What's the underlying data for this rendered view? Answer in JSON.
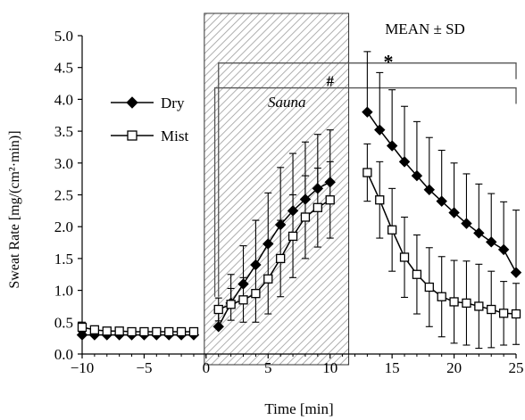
{
  "chart_data": {
    "type": "line",
    "xlabel": "Time [min]",
    "ylabel": "Sweat Rate [mg/(cm²·min)]",
    "xlim": [
      -10,
      25
    ],
    "ylim": [
      0,
      5
    ],
    "x_ticks": [
      -10,
      -5,
      0,
      5,
      10,
      15,
      20,
      25
    ],
    "y_ticks": [
      0.0,
      0.5,
      1.0,
      1.5,
      2.0,
      2.5,
      3.0,
      3.5,
      4.0,
      4.5,
      5.0
    ],
    "annotations": {
      "mean_sd": "MEAN ± SD",
      "sauna": "Sauna",
      "star": "*",
      "hash": "#"
    },
    "sauna_period": [
      0,
      11.5
    ],
    "series": [
      {
        "name": "Dry",
        "marker": "filled-diamond",
        "segments": [
          {
            "x": [
              -10,
              -9,
              -8,
              -7,
              -6,
              -5,
              -4,
              -3,
              -2,
              -1
            ],
            "y": [
              0.3,
              0.3,
              0.3,
              0.3,
              0.3,
              0.3,
              0.3,
              0.3,
              0.3,
              0.3
            ],
            "sd": [
              0.05,
              0.05,
              0.05,
              0.05,
              0.05,
              0.05,
              0.05,
              0.05,
              0.05,
              0.05
            ]
          },
          {
            "x": [
              1,
              2,
              3,
              4,
              5,
              6,
              7,
              8,
              9,
              10
            ],
            "y": [
              0.43,
              0.8,
              1.1,
              1.4,
              1.73,
              2.03,
              2.25,
              2.43,
              2.6,
              2.7
            ],
            "sd": [
              0.3,
              0.45,
              0.6,
              0.7,
              0.8,
              0.9,
              0.9,
              0.9,
              0.85,
              0.82
            ]
          },
          {
            "x": [
              13,
              14,
              15,
              16,
              17,
              18,
              19,
              20,
              21,
              22,
              23,
              24,
              25
            ],
            "y": [
              3.8,
              3.52,
              3.27,
              3.02,
              2.8,
              2.58,
              2.4,
              2.22,
              2.05,
              1.9,
              1.76,
              1.64,
              1.28
            ],
            "sd": [
              0.95,
              0.9,
              0.88,
              0.87,
              0.85,
              0.82,
              0.8,
              0.78,
              0.78,
              0.77,
              0.76,
              0.75,
              0.98
            ]
          }
        ]
      },
      {
        "name": "Mist",
        "marker": "open-square",
        "segments": [
          {
            "x": [
              -10,
              -9,
              -8,
              -7,
              -6,
              -5,
              -4,
              -3,
              -2,
              -1
            ],
            "y": [
              0.42,
              0.38,
              0.36,
              0.36,
              0.35,
              0.35,
              0.35,
              0.35,
              0.35,
              0.35
            ],
            "sd": [
              0.08,
              0.06,
              0.06,
              0.06,
              0.06,
              0.06,
              0.06,
              0.06,
              0.06,
              0.06
            ]
          },
          {
            "x": [
              1,
              2,
              3,
              4,
              5,
              6,
              7,
              8,
              9,
              10
            ],
            "y": [
              0.7,
              0.78,
              0.85,
              0.95,
              1.18,
              1.5,
              1.85,
              2.15,
              2.3,
              2.42
            ],
            "sd": [
              0.18,
              0.25,
              0.35,
              0.45,
              0.55,
              0.6,
              0.65,
              0.65,
              0.62,
              0.6
            ]
          },
          {
            "x": [
              13,
              14,
              15,
              16,
              17,
              18,
              19,
              20,
              21,
              22,
              23,
              24,
              25
            ],
            "y": [
              2.85,
              2.42,
              1.95,
              1.52,
              1.25,
              1.05,
              0.9,
              0.82,
              0.8,
              0.75,
              0.7,
              0.64,
              0.63
            ],
            "sd": [
              0.45,
              0.6,
              0.65,
              0.63,
              0.62,
              0.62,
              0.63,
              0.65,
              0.66,
              0.66,
              0.6,
              0.5,
              0.48
            ]
          }
        ]
      }
    ],
    "significance_brackets": [
      {
        "label": "*",
        "start_x": 1.0,
        "end_x": 25,
        "level": 4.57
      },
      {
        "label": "#",
        "start_x": 0.7,
        "end_x": 25,
        "level": 4.18
      }
    ]
  }
}
